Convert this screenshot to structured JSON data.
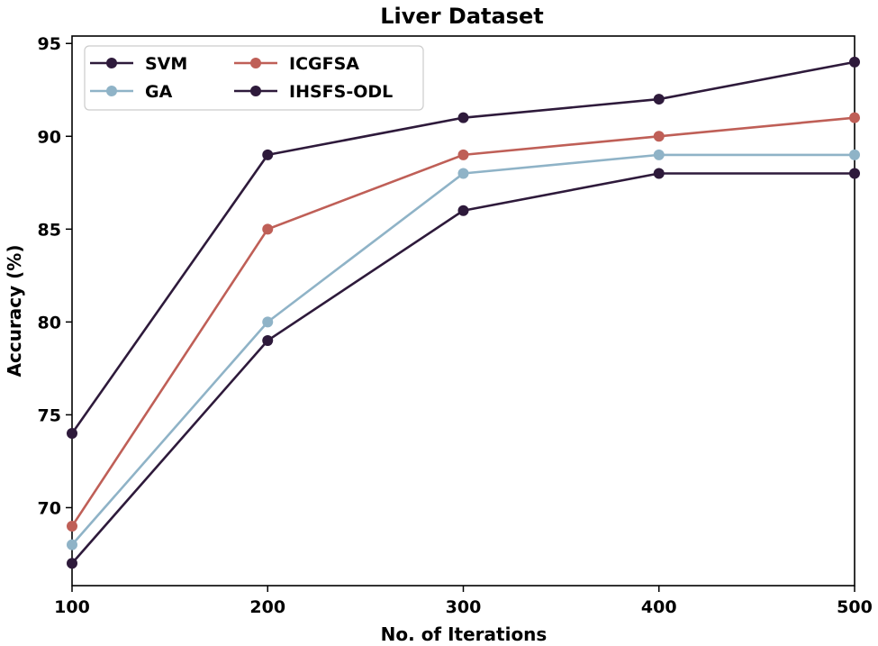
{
  "chart_data": {
    "type": "line",
    "title": "Liver Dataset",
    "xlabel": "No. of Iterations",
    "ylabel": "Accuracy (%)",
    "x": [
      100,
      200,
      300,
      400,
      500
    ],
    "xticks": [
      100,
      200,
      300,
      400,
      500
    ],
    "yticks": [
      70,
      75,
      80,
      85,
      90,
      95
    ],
    "xlim": [
      100,
      500
    ],
    "ylim": [
      65.8,
      95.4
    ],
    "grid": false,
    "legend_position": "top-left",
    "series": [
      {
        "name": "SVM",
        "color": "#2e1a3b",
        "values": [
          67,
          79,
          86,
          88,
          88
        ]
      },
      {
        "name": "GA",
        "color": "#8fb3c7",
        "values": [
          68,
          80,
          88,
          89,
          89
        ]
      },
      {
        "name": "ICGFSA",
        "color": "#bf5f57",
        "values": [
          69,
          85,
          89,
          90,
          91
        ]
      },
      {
        "name": "IHSFS-ODL",
        "color": "#2e1a3b",
        "values": [
          74,
          89,
          91,
          92,
          94
        ]
      }
    ]
  }
}
